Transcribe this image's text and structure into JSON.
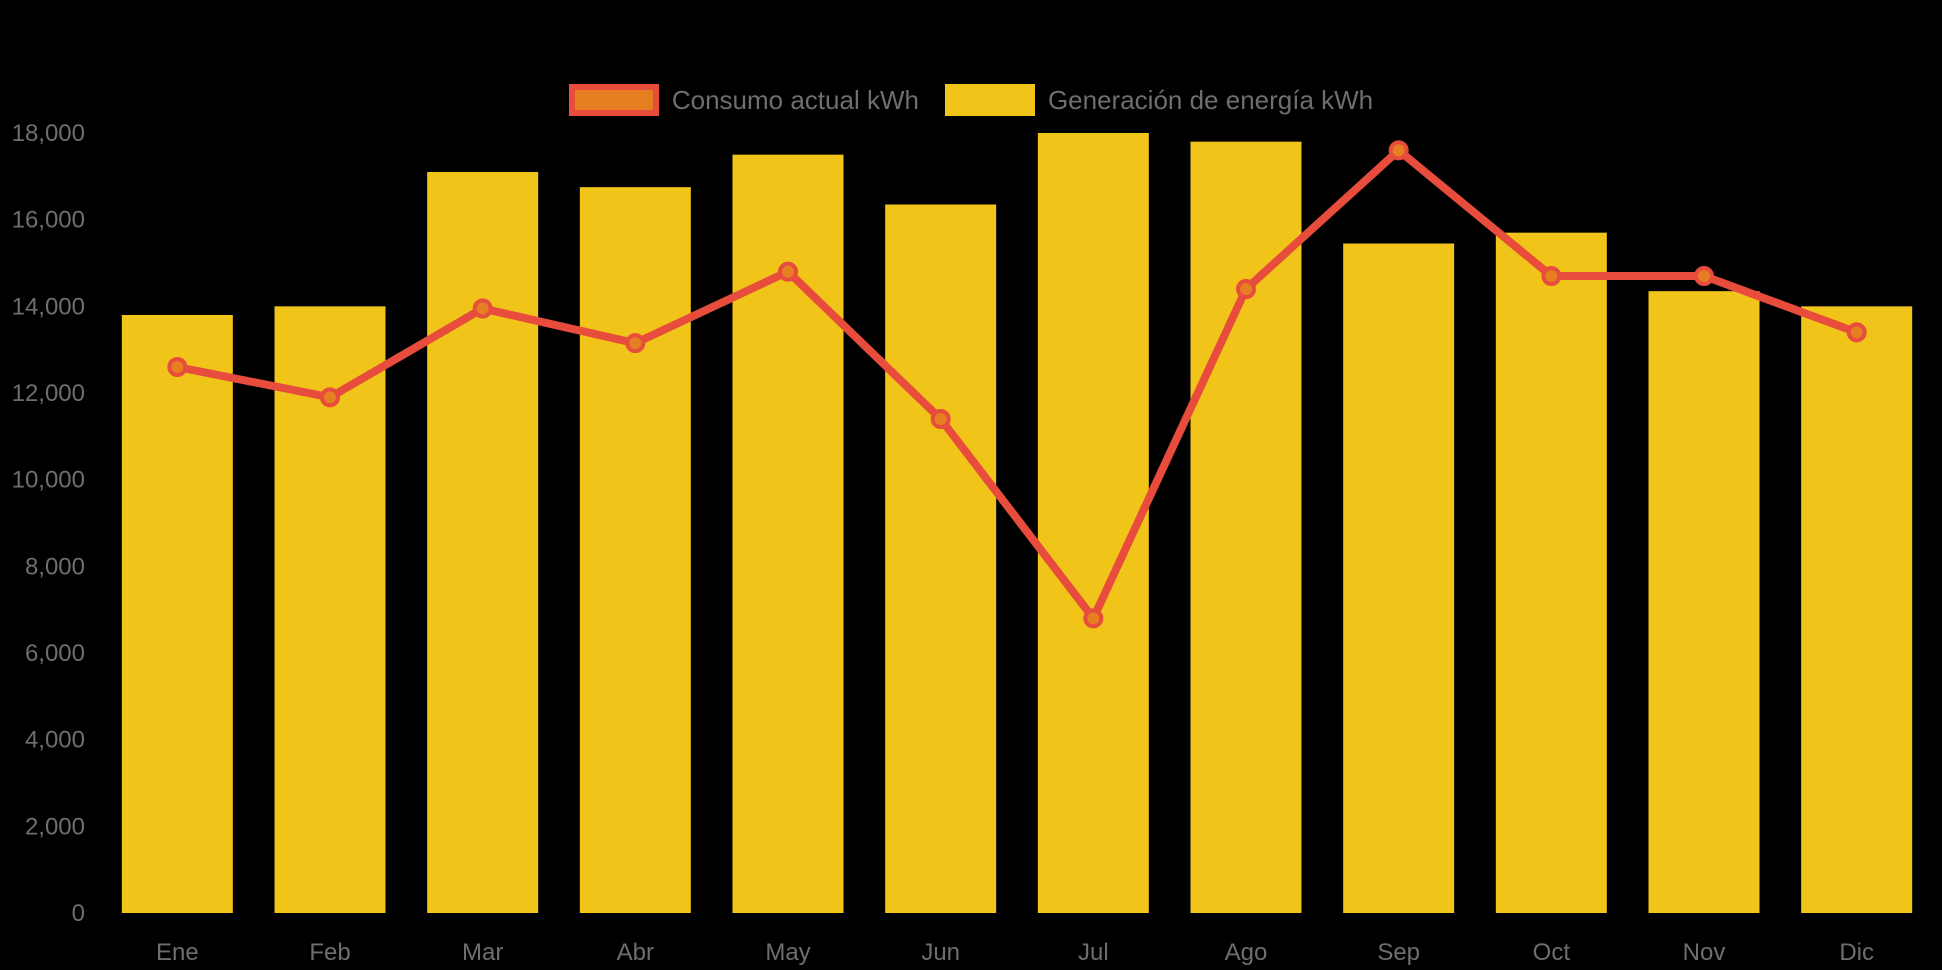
{
  "chart_data": {
    "type": "combo-bar-line",
    "title": "",
    "categories": [
      "Ene",
      "Feb",
      "Mar",
      "Abr",
      "May",
      "Jun",
      "Jul",
      "Ago",
      "Sep",
      "Oct",
      "Nov",
      "Dic"
    ],
    "series": [
      {
        "name": "Consumo actual kWh",
        "type": "line",
        "values": [
          12600,
          11900,
          13950,
          13150,
          14800,
          11400,
          6800,
          14400,
          17600,
          14700,
          14700,
          13400
        ],
        "color": "#E74C3C",
        "marker_fill": "#E67E22"
      },
      {
        "name": "Generación de energía kWh",
        "type": "bar",
        "values": [
          13800,
          14000,
          17100,
          16750,
          17500,
          16350,
          18000,
          17800,
          15450,
          15700,
          14350,
          14000
        ],
        "color": "#F0C419"
      }
    ],
    "xlabel": "",
    "ylabel": "",
    "ylim": [
      0,
      18000
    ],
    "ytick_step": 2000,
    "ytick_labels": [
      "0",
      "2,000",
      "4,000",
      "6,000",
      "8,000",
      "10,000",
      "12,000",
      "14,000",
      "16,000",
      "18,000"
    ],
    "grid": false,
    "legend_position": "top-center",
    "background_color": "#000000",
    "axis_text_color": "#6e6e6e"
  }
}
